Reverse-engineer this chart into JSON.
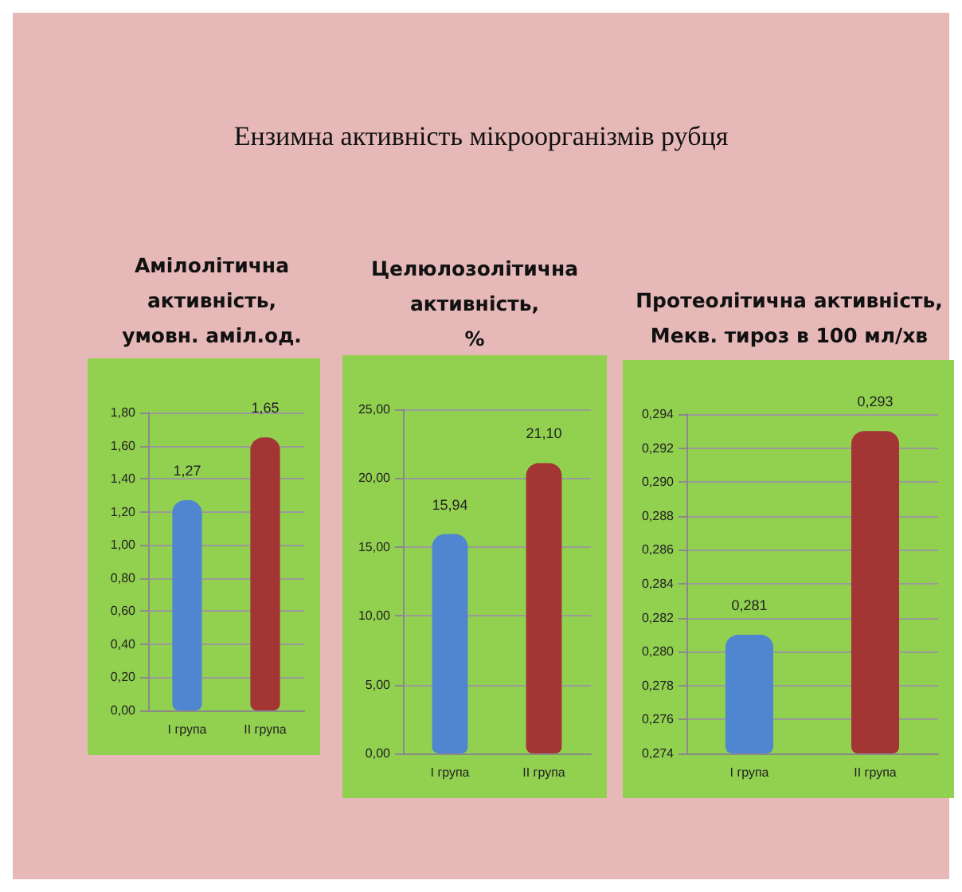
{
  "chart_data": [
    {
      "type": "bar",
      "title": "Амілолітична\nактивність,\nумовн. аміл.од.",
      "annotations": [
        "Ензимна активність мікроорганізмів рубця"
      ],
      "categories": [
        "I група",
        "II група"
      ],
      "values": [
        1.27,
        1.65
      ],
      "colors": [
        "#4f86cf",
        "#a33535"
      ],
      "value_labels": [
        "1,27",
        "1,65"
      ],
      "ylim": [
        0,
        1.8
      ],
      "yticks": [
        {
          "value": 0,
          "label": "0,00"
        },
        {
          "value": 0.2,
          "label": "0,20"
        },
        {
          "value": 0.4,
          "label": "0,40"
        },
        {
          "value": 0.6,
          "label": "0,60"
        },
        {
          "value": 0.8,
          "label": "0,80"
        },
        {
          "value": 1.0,
          "label": "1,00"
        },
        {
          "value": 1.2,
          "label": "1,20"
        },
        {
          "value": 1.4,
          "label": "1,40"
        },
        {
          "value": 1.6,
          "label": "1,60"
        },
        {
          "value": 1.8,
          "label": "1,80"
        }
      ],
      "grid": "y"
    },
    {
      "type": "bar",
      "title": "Целюлозолітична\nактивність,\n%",
      "categories": [
        "I група",
        "II група"
      ],
      "values": [
        15.94,
        21.1
      ],
      "colors": [
        "#4f86cf",
        "#a33535"
      ],
      "value_labels": [
        "15,94",
        "21,10"
      ],
      "ylim": [
        0,
        25
      ],
      "yticks": [
        {
          "value": 0,
          "label": "0,00"
        },
        {
          "value": 5,
          "label": "5,00"
        },
        {
          "value": 10,
          "label": "10,00"
        },
        {
          "value": 15,
          "label": "15,00"
        },
        {
          "value": 20,
          "label": "20,00"
        },
        {
          "value": 25,
          "label": "25,00"
        }
      ],
      "grid": "y"
    },
    {
      "type": "bar",
      "title": "Протеолітична активність,\nМекв. тироз в 100 мл/хв",
      "categories": [
        "I група",
        "II група"
      ],
      "values": [
        0.281,
        0.293
      ],
      "colors": [
        "#4f86cf",
        "#a33535"
      ],
      "value_labels": [
        "0,281",
        "0,293"
      ],
      "ylim": [
        0.274,
        0.294
      ],
      "yticks": [
        {
          "value": 0.274,
          "label": "0,274"
        },
        {
          "value": 0.276,
          "label": "0,276"
        },
        {
          "value": 0.278,
          "label": "0,278"
        },
        {
          "value": 0.28,
          "label": "0,280"
        },
        {
          "value": 0.282,
          "label": "0,282"
        },
        {
          "value": 0.284,
          "label": "0,284"
        },
        {
          "value": 0.286,
          "label": "0,286"
        },
        {
          "value": 0.288,
          "label": "0,288"
        },
        {
          "value": 0.29,
          "label": "0,290"
        },
        {
          "value": 0.292,
          "label": "0,292"
        },
        {
          "value": 0.294,
          "label": "0,294"
        }
      ],
      "grid": "y"
    }
  ]
}
